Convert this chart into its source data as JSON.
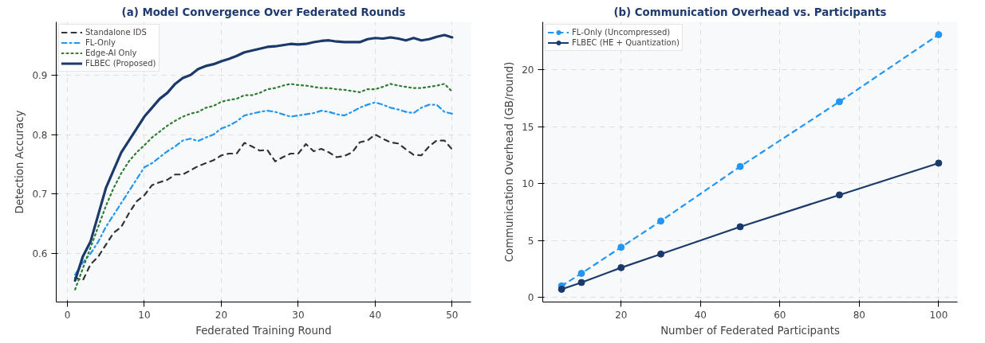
{
  "chart_data": [
    {
      "type": "line",
      "title": "(a) Model Convergence Over Federated Rounds",
      "xlabel": "Federated Training Round",
      "ylabel": "Detection Accuracy",
      "x": [
        1,
        2,
        3,
        4,
        5,
        6,
        7,
        8,
        9,
        10,
        11,
        12,
        13,
        14,
        15,
        16,
        17,
        18,
        19,
        20,
        21,
        22,
        23,
        24,
        25,
        26,
        27,
        28,
        29,
        30,
        31,
        32,
        33,
        34,
        35,
        36,
        37,
        38,
        39,
        40,
        41,
        42,
        43,
        44,
        45,
        46,
        47,
        48,
        49,
        50
      ],
      "xlim": [
        -1.45,
        52.45
      ],
      "xticks": [
        0,
        10,
        20,
        30,
        40,
        50
      ],
      "ylim": [
        0.519,
        0.989
      ],
      "yticks": [
        0.6,
        0.7,
        0.8,
        0.9
      ],
      "grid": true,
      "legend": "top left",
      "marker": "none",
      "series": [
        {
          "name": "Standalone IDS",
          "color": "#333333",
          "line_style": "dashed",
          "values": [
            0.56,
            0.555,
            0.582,
            0.595,
            0.615,
            0.635,
            0.645,
            0.668,
            0.688,
            0.698,
            0.715,
            0.72,
            0.724,
            0.733,
            0.733,
            0.74,
            0.747,
            0.752,
            0.757,
            0.765,
            0.768,
            0.768,
            0.786,
            0.78,
            0.773,
            0.774,
            0.755,
            0.762,
            0.768,
            0.768,
            0.784,
            0.772,
            0.776,
            0.77,
            0.762,
            0.764,
            0.77,
            0.787,
            0.79,
            0.8,
            0.793,
            0.787,
            0.785,
            0.775,
            0.766,
            0.765,
            0.78,
            0.79,
            0.79,
            0.775
          ]
        },
        {
          "name": "FL-Only",
          "color": "#2196f3",
          "line_style": "dashdot",
          "values": [
            0.565,
            0.585,
            0.6,
            0.62,
            0.645,
            0.665,
            0.685,
            0.705,
            0.725,
            0.745,
            0.752,
            0.762,
            0.772,
            0.78,
            0.79,
            0.793,
            0.789,
            0.795,
            0.8,
            0.81,
            0.815,
            0.822,
            0.832,
            0.835,
            0.838,
            0.84,
            0.838,
            0.834,
            0.83,
            0.832,
            0.834,
            0.836,
            0.84,
            0.838,
            0.834,
            0.832,
            0.838,
            0.845,
            0.85,
            0.854,
            0.85,
            0.845,
            0.842,
            0.838,
            0.836,
            0.845,
            0.85,
            0.85,
            0.838,
            0.835
          ]
        },
        {
          "name": "Edge-AI Only",
          "color": "#2e7d32",
          "line_style": "dotted",
          "values": [
            0.54,
            0.575,
            0.61,
            0.645,
            0.68,
            0.71,
            0.735,
            0.755,
            0.77,
            0.782,
            0.795,
            0.805,
            0.815,
            0.823,
            0.83,
            0.835,
            0.838,
            0.845,
            0.848,
            0.855,
            0.858,
            0.86,
            0.866,
            0.866,
            0.87,
            0.876,
            0.878,
            0.882,
            0.885,
            0.883,
            0.882,
            0.88,
            0.878,
            0.878,
            0.876,
            0.875,
            0.873,
            0.871,
            0.876,
            0.876,
            0.88,
            0.885,
            0.882,
            0.88,
            0.878,
            0.878,
            0.88,
            0.882,
            0.885,
            0.872
          ]
        },
        {
          "name": "FLBEC (Proposed)",
          "color": "#1b3a6b",
          "line_style": "solid",
          "values": [
            0.555,
            0.595,
            0.62,
            0.665,
            0.71,
            0.74,
            0.77,
            0.79,
            0.81,
            0.83,
            0.845,
            0.86,
            0.87,
            0.885,
            0.895,
            0.9,
            0.91,
            0.915,
            0.918,
            0.923,
            0.927,
            0.932,
            0.938,
            0.941,
            0.944,
            0.947,
            0.948,
            0.95,
            0.952,
            0.951,
            0.952,
            0.955,
            0.957,
            0.958,
            0.956,
            0.955,
            0.955,
            0.955,
            0.96,
            0.962,
            0.961,
            0.963,
            0.961,
            0.958,
            0.962,
            0.958,
            0.96,
            0.964,
            0.967,
            0.963
          ]
        }
      ]
    },
    {
      "type": "line",
      "title": "(b) Communication Overhead vs. Participants",
      "xlabel": "Number of Federated Participants",
      "ylabel": "Communication Overhead (GB/round)",
      "x": [
        5,
        10,
        20,
        30,
        50,
        75,
        100
      ],
      "xlim": [
        0.25,
        104.75
      ],
      "xticks": [
        20,
        40,
        60,
        80,
        100
      ],
      "ylim": [
        -0.42,
        24.22
      ],
      "yticks": [
        0,
        5,
        10,
        15,
        20
      ],
      "grid": true,
      "legend": "top left",
      "marker": "circle",
      "series": [
        {
          "name": "FL-Only (Uncompressed)",
          "color": "#2196f3",
          "line_style": "dashed",
          "values": [
            1.0,
            2.1,
            4.4,
            6.7,
            11.5,
            17.2,
            23.1
          ]
        },
        {
          "name": "FLBEC (HE + Quantization)",
          "color": "#1b3a6b",
          "line_style": "solid",
          "values": [
            0.7,
            1.3,
            2.6,
            3.8,
            6.2,
            9.0,
            11.8
          ]
        }
      ]
    }
  ]
}
